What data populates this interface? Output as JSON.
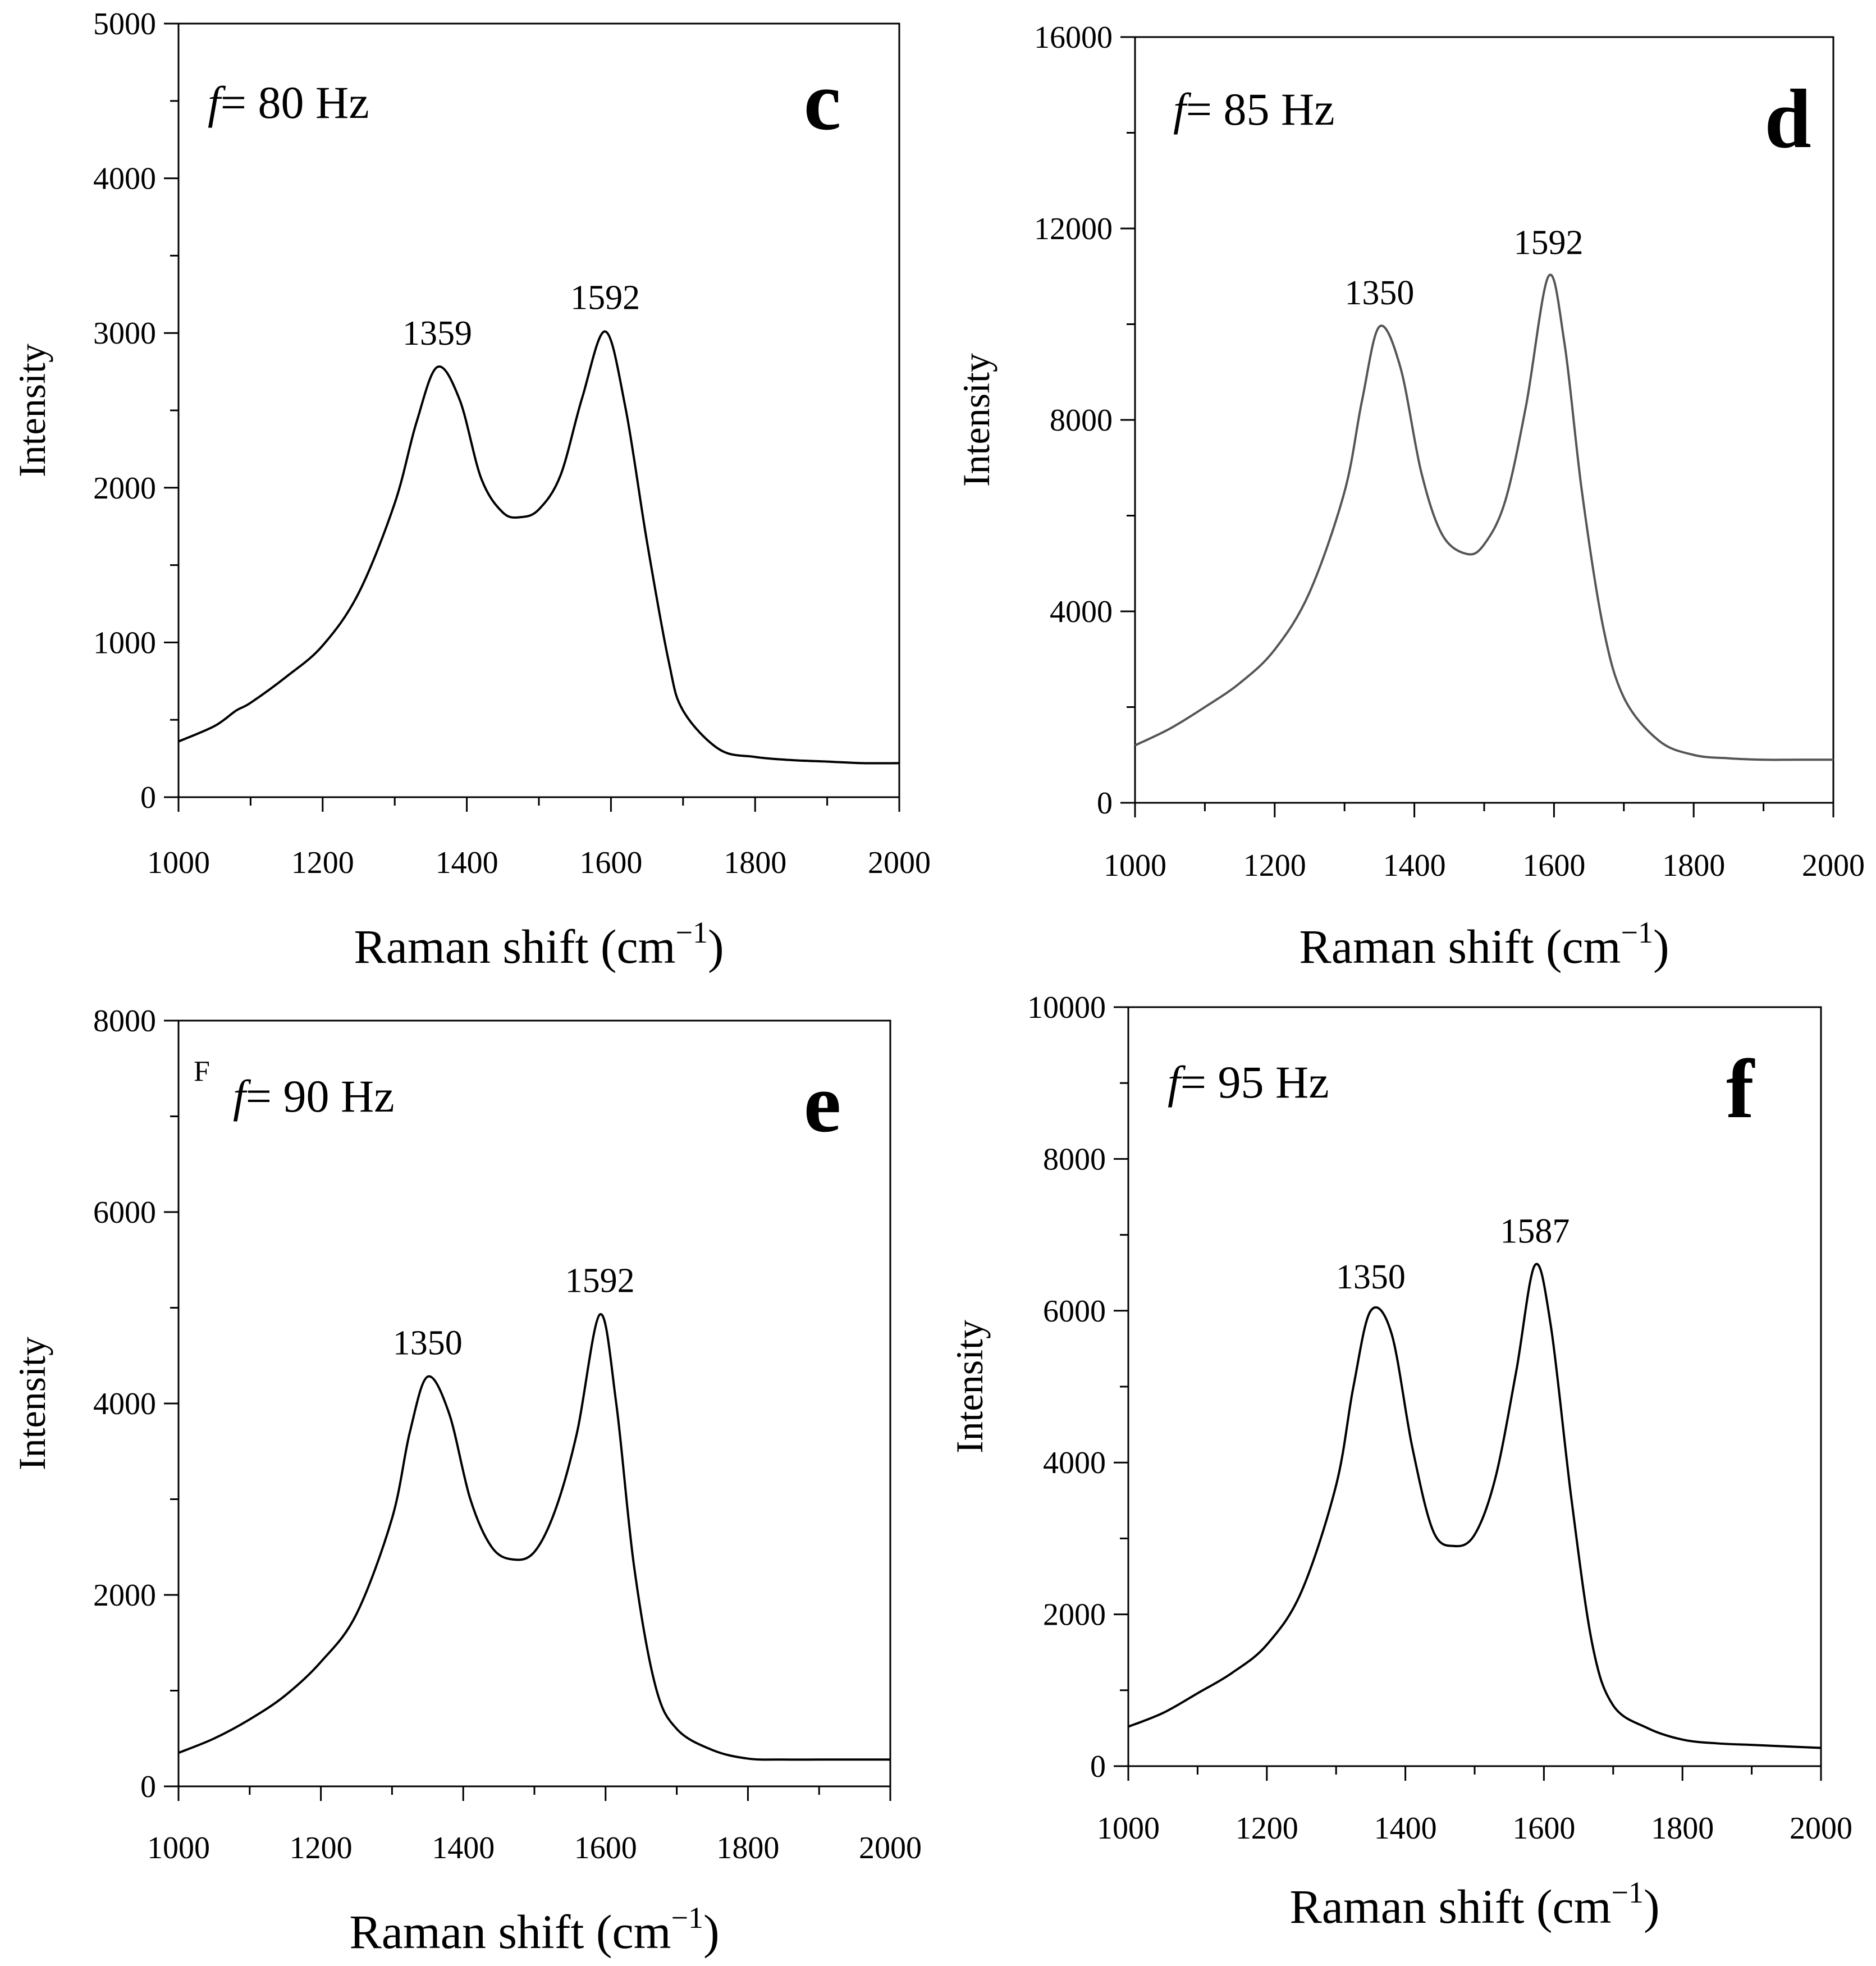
{
  "figure": {
    "panels": [
      {
        "letter": "c",
        "freq_label": "= 80 Hz",
        "freq_symbol": "f",
        "stray_mark": "",
        "xlabel": "Raman shift (cm",
        "xlabel_sup": "−1",
        "xlabel_close": ")",
        "ylabel": "Intensity"
      },
      {
        "letter": "d",
        "freq_label": "= 85 Hz",
        "freq_symbol": "f",
        "stray_mark": "",
        "xlabel": "Raman shift (cm",
        "xlabel_sup": "−1",
        "xlabel_close": ")",
        "ylabel": "Intensity"
      },
      {
        "letter": "e",
        "freq_label": "= 90 Hz",
        "freq_symbol": "f",
        "stray_mark": "F",
        "xlabel": "Raman shift (cm",
        "xlabel_sup": "−1",
        "xlabel_close": ")",
        "ylabel": "Intensity"
      },
      {
        "letter": "f",
        "freq_label": "= 95 Hz",
        "freq_symbol": "f",
        "stray_mark": "",
        "xlabel": "Raman shift (cm",
        "xlabel_sup": "−1",
        "xlabel_close": ")",
        "ylabel": "Intensity"
      }
    ]
  },
  "chart_data": [
    {
      "type": "line",
      "panel": "c",
      "xlabel": "Raman shift (cm−1)",
      "ylabel": "Intensity",
      "xlim": [
        1000,
        2000
      ],
      "ylim": [
        0,
        5000
      ],
      "xticks": [
        1000,
        1200,
        1400,
        1600,
        1800,
        2000
      ],
      "yticks": [
        0,
        1000,
        2000,
        3000,
        4000,
        5000
      ],
      "grid": false,
      "line_color": "#000000",
      "annotations": [
        {
          "x": 1359,
          "y": 2780,
          "text": "1359"
        },
        {
          "x": 1592,
          "y": 3010,
          "text": "1592"
        }
      ],
      "series": [
        {
          "x": [
            1000,
            1050,
            1080,
            1100,
            1150,
            1200,
            1250,
            1300,
            1330,
            1359,
            1390,
            1420,
            1450,
            1475,
            1500,
            1530,
            1560,
            1592,
            1620,
            1650,
            1680,
            1700,
            1750,
            1800,
            1850,
            1900,
            1950,
            2000
          ],
          "y": [
            360,
            460,
            560,
            610,
            780,
            980,
            1320,
            1900,
            2420,
            2780,
            2570,
            2060,
            1840,
            1810,
            1860,
            2080,
            2580,
            3010,
            2520,
            1650,
            880,
            560,
            310,
            260,
            240,
            230,
            220,
            220
          ]
        }
      ]
    },
    {
      "type": "line",
      "panel": "d",
      "xlabel": "Raman shift (cm−1)",
      "ylabel": "Intensity",
      "xlim": [
        1000,
        2000
      ],
      "ylim": [
        0,
        16000
      ],
      "xticks": [
        1000,
        1200,
        1400,
        1600,
        1800,
        2000
      ],
      "yticks": [
        0,
        4000,
        8000,
        12000,
        16000
      ],
      "grid": false,
      "line_color": "#555555",
      "annotations": [
        {
          "x": 1350,
          "y": 9950,
          "text": "1350"
        },
        {
          "x": 1592,
          "y": 11000,
          "text": "1592"
        }
      ],
      "series": [
        {
          "x": [
            1000,
            1050,
            1100,
            1150,
            1200,
            1250,
            1300,
            1325,
            1350,
            1380,
            1410,
            1440,
            1475,
            1500,
            1530,
            1560,
            1592,
            1615,
            1640,
            1670,
            1700,
            1750,
            1800,
            1850,
            1900,
            1950,
            2000
          ],
          "y": [
            1200,
            1550,
            2000,
            2500,
            3200,
            4400,
            6500,
            8400,
            9950,
            9100,
            6900,
            5600,
            5200,
            5400,
            6300,
            8300,
            11000,
            9600,
            6500,
            3700,
            2200,
            1300,
            1000,
            930,
            900,
            900,
            900
          ]
        }
      ]
    },
    {
      "type": "line",
      "panel": "e",
      "xlabel": "Raman shift (cm−1)",
      "ylabel": "Intensity",
      "xlim": [
        1000,
        2000
      ],
      "ylim": [
        0,
        8000
      ],
      "xticks": [
        1000,
        1200,
        1400,
        1600,
        1800,
        2000
      ],
      "yticks": [
        0,
        2000,
        4000,
        6000,
        8000
      ],
      "grid": false,
      "line_color": "#000000",
      "annotations": [
        {
          "x": 1350,
          "y": 4280,
          "text": "1350"
        },
        {
          "x": 1592,
          "y": 4930,
          "text": "1592"
        }
      ],
      "series": [
        {
          "x": [
            1000,
            1050,
            1100,
            1150,
            1200,
            1250,
            1300,
            1325,
            1350,
            1380,
            1410,
            1440,
            1470,
            1500,
            1530,
            1560,
            1592,
            1615,
            1640,
            1670,
            1700,
            1750,
            1800,
            1850,
            1900,
            1950,
            2000
          ],
          "y": [
            350,
            500,
            700,
            950,
            1300,
            1800,
            2800,
            3700,
            4280,
            3900,
            3000,
            2500,
            2370,
            2450,
            2900,
            3700,
            4930,
            4000,
            2300,
            1050,
            600,
            380,
            290,
            280,
            280,
            280,
            280
          ]
        }
      ]
    },
    {
      "type": "line",
      "panel": "f",
      "xlabel": "Raman shift (cm−1)",
      "ylabel": "Intensity",
      "xlim": [
        1000,
        2000
      ],
      "ylim": [
        0,
        10000
      ],
      "xticks": [
        1000,
        1200,
        1400,
        1600,
        1800,
        2000
      ],
      "yticks": [
        0,
        2000,
        4000,
        6000,
        8000,
        10000
      ],
      "grid": false,
      "line_color": "#000000",
      "annotations": [
        {
          "x": 1350,
          "y": 6000,
          "text": "1350"
        },
        {
          "x": 1587,
          "y": 6600,
          "text": "1587"
        }
      ],
      "series": [
        {
          "x": [
            1000,
            1050,
            1100,
            1150,
            1200,
            1250,
            1300,
            1325,
            1350,
            1380,
            1410,
            1440,
            1470,
            1500,
            1530,
            1560,
            1587,
            1610,
            1640,
            1670,
            1700,
            1750,
            1800,
            1850,
            1900,
            1950,
            2000
          ],
          "y": [
            520,
            700,
            960,
            1230,
            1600,
            2300,
            3700,
            5000,
            6000,
            5700,
            4200,
            3100,
            2900,
            3050,
            3800,
            5200,
            6600,
            5800,
            3500,
            1600,
            800,
            500,
            350,
            300,
            280,
            260,
            240
          ]
        }
      ]
    }
  ]
}
